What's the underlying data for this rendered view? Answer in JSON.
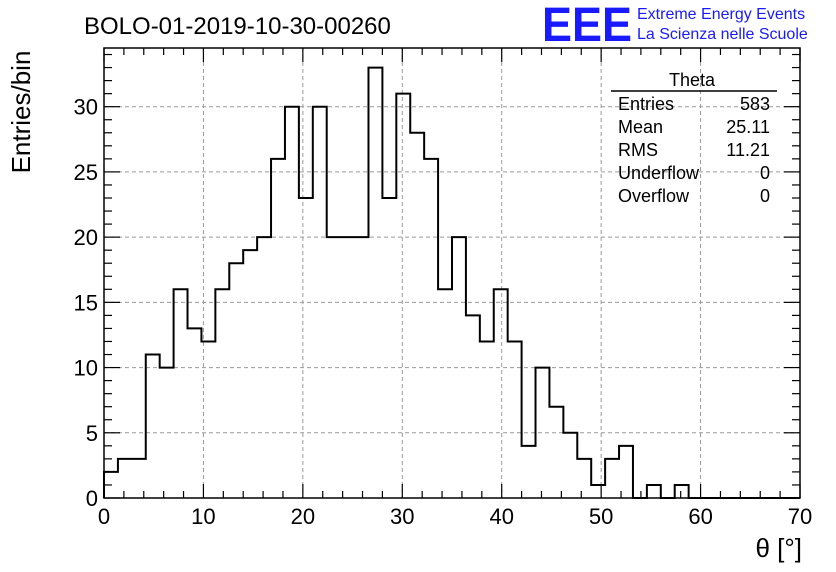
{
  "logo": {
    "mark": "EEE",
    "line1": "Extreme Energy Events",
    "line2": "La Scienza nelle Scuole",
    "color": "#1a1aff"
  },
  "chart_data": {
    "type": "bar",
    "title": "BOLO-01-2019-10-30-00260",
    "xlabel": "θ [°]",
    "ylabel": "Entries/bin",
    "xlim": [
      0,
      70
    ],
    "ylim": [
      0,
      34.5
    ],
    "grid": true,
    "bin_width": 1.4,
    "bin_edges": [
      0,
      1.4,
      2.8,
      4.2,
      5.6,
      7.0,
      8.4,
      9.8,
      11.2,
      12.6,
      14.0,
      15.4,
      16.8,
      18.2,
      19.6,
      21.0,
      22.4,
      23.8,
      25.2,
      26.6,
      28.0,
      29.4,
      30.8,
      32.2,
      33.6,
      35.0,
      36.4,
      37.8,
      39.2,
      40.6,
      42.0,
      43.4,
      44.8,
      46.2,
      47.6,
      49.0,
      50.4,
      51.8,
      53.2,
      54.6,
      56.0,
      57.4,
      58.8,
      60.2,
      61.6,
      63.0,
      64.4,
      65.8,
      67.2,
      68.6,
      70.0
    ],
    "values": [
      2,
      3,
      3,
      11,
      10,
      16,
      13,
      12,
      16,
      18,
      19,
      20,
      26,
      30,
      23,
      30,
      20,
      20,
      20,
      33,
      23,
      31,
      28,
      26,
      16,
      20,
      14,
      12,
      16,
      12,
      4,
      10,
      7,
      5,
      3,
      1,
      3,
      4,
      0,
      1,
      0,
      1,
      0,
      0,
      0,
      0,
      0,
      0,
      0,
      0
    ],
    "x_ticks": [
      0,
      10,
      20,
      30,
      40,
      50,
      60,
      70
    ],
    "y_ticks": [
      0,
      5,
      10,
      15,
      20,
      25,
      30
    ],
    "line_color": "#000000"
  },
  "stats": {
    "title": "Theta",
    "rows": [
      {
        "label": "Entries",
        "value": "583"
      },
      {
        "label": "Mean",
        "value": "25.11"
      },
      {
        "label": "RMS",
        "value": "11.21"
      },
      {
        "label": "Underflow",
        "value": "0"
      },
      {
        "label": "Overflow",
        "value": "0"
      }
    ]
  }
}
